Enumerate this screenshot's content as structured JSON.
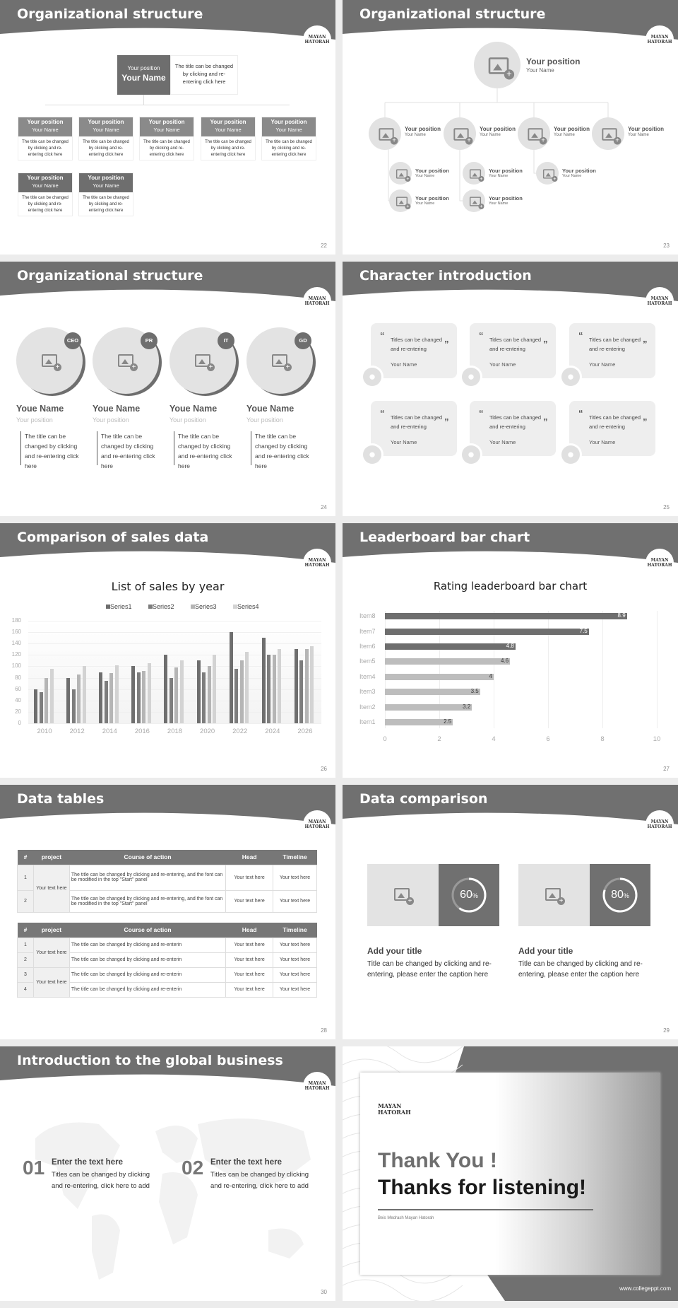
{
  "logo": "MAYAN HATORAH",
  "s22": {
    "number": "22",
    "title": "Organizational structure",
    "top": {
      "position": "Your position",
      "name": "Your Name",
      "desc": "The title can be changed by clicking and re-entering click here"
    },
    "nodes": [
      {
        "position": "Your position",
        "name": "Your Name",
        "desc": "The title can be changed by clicking and re-entering click here"
      },
      {
        "position": "Your position",
        "name": "Your Name",
        "desc": "The title can be changed by clicking and re-entering click here"
      },
      {
        "position": "Your position",
        "name": "Your Name",
        "desc": "The title can be changed by clicking and re-entering click here"
      },
      {
        "position": "Your position",
        "name": "Your Name",
        "desc": "The title can be changed by clicking and re-entering click here"
      },
      {
        "position": "Your position",
        "name": "Your Name",
        "desc": "The title can be changed by clicking and re-entering click here"
      },
      {
        "position": "Your position",
        "name": "Your Name",
        "desc": "The title can be changed by clicking and re-entering click here"
      },
      {
        "position": "Your position",
        "name": "Your Name",
        "desc": "The title can be changed by clicking and re-entering click here"
      }
    ]
  },
  "s23": {
    "number": "23",
    "title": "Organizational structure",
    "top": {
      "position": "Your position",
      "name": "Your Name"
    },
    "level2": [
      {
        "position": "Your position",
        "name": "Your Name"
      },
      {
        "position": "Your position",
        "name": "Your Name"
      },
      {
        "position": "Your position",
        "name": "Your Name"
      },
      {
        "position": "Your position",
        "name": "Your Name"
      }
    ],
    "level3": [
      {
        "position": "Your position",
        "name": "Your Name"
      },
      {
        "position": "Your position",
        "name": "Your Name"
      },
      {
        "position": "Your position",
        "name": "Your Name"
      },
      {
        "position": "Your position",
        "name": "Your Name"
      },
      {
        "position": "Your position",
        "name": "Your Name"
      }
    ]
  },
  "s24": {
    "number": "24",
    "title": "Organizational structure",
    "people": [
      {
        "badge": "CEO",
        "name": "Youe Name",
        "position": "Your position",
        "desc": "The title can be changed by clicking and re-entering click here"
      },
      {
        "badge": "PR",
        "name": "Youe Name",
        "position": "Your position",
        "desc": "The title can be changed by clicking and re-entering click here"
      },
      {
        "badge": "IT",
        "name": "Youe Name",
        "position": "Your position",
        "desc": "The title can be changed by clicking and re-entering click here"
      },
      {
        "badge": "GD",
        "name": "Youe Name",
        "position": "Your position",
        "desc": "The title can be changed by clicking and re-entering click here"
      }
    ]
  },
  "s25": {
    "number": "25",
    "title": "Character introduction",
    "cards": [
      {
        "quote": "Titles can be changed and re-entering",
        "name": "Your Name"
      },
      {
        "quote": "Titles can be changed and re-entering",
        "name": "Your Name"
      },
      {
        "quote": "Titles can be changed and re-entering",
        "name": "Your Name"
      },
      {
        "quote": "Titles can be changed and re-entering",
        "name": "Your Name"
      },
      {
        "quote": "Titles can be changed and re-entering",
        "name": "Your Name"
      },
      {
        "quote": "Titles can be changed and re-entering",
        "name": "Your Name"
      }
    ]
  },
  "s26": {
    "number": "26",
    "title": "Comparison of sales data"
  },
  "s27": {
    "number": "27",
    "title": "Leaderboard bar chart"
  },
  "s28": {
    "number": "28",
    "title": "Data tables",
    "headers": [
      "#",
      "project",
      "Course of action",
      "Head",
      "Timeline"
    ],
    "table1": {
      "project": "Your text here",
      "rows": [
        {
          "n": "1",
          "action": "The title can be changed by clicking and re-entering, and the font can be modified in the top \"Start\" panel",
          "head": "Your text here",
          "timeline": "Your text here"
        },
        {
          "n": "2",
          "action": "The title can be changed by clicking and re-entering, and the font can be modified in the top \"Start\" panel",
          "head": "Your text here",
          "timeline": "Your text here"
        }
      ]
    },
    "table2": {
      "projects": [
        "Your text here",
        "Your text here"
      ],
      "rows": [
        {
          "n": "1",
          "action": "The title can be changed by clicking and re-enterin",
          "head": "Your text here",
          "timeline": "Your text here"
        },
        {
          "n": "2",
          "action": "The title can be changed by clicking and re-enterin",
          "head": "Your text here",
          "timeline": "Your text here"
        },
        {
          "n": "3",
          "action": "The title can be changed by clicking and re-enterin",
          "head": "Your text here",
          "timeline": "Your text here"
        },
        {
          "n": "4",
          "action": "The title can be changed by clicking and re-enterin",
          "head": "Your text here",
          "timeline": "Your text here"
        }
      ]
    }
  },
  "s29": {
    "number": "29",
    "title": "Data comparison",
    "items": [
      {
        "percent": 60,
        "value": "60",
        "unit": "%",
        "title": "Add your title",
        "caption": "Title can be changed by clicking and re-entering, please enter the caption here"
      },
      {
        "percent": 80,
        "value": "80",
        "unit": "%",
        "title": "Add your title",
        "caption": "Title can be changed by clicking and re-entering, please enter the caption here"
      }
    ]
  },
  "s30": {
    "number": "30",
    "title": "Introduction to the global business",
    "items": [
      {
        "num": "01",
        "heading": "Enter the text here",
        "text": "Titles can be changed by clicking and re-entering, click here to add"
      },
      {
        "num": "02",
        "heading": "Enter the text here",
        "text": "Titles can be changed by clicking and re-entering, click here to add"
      }
    ]
  },
  "s31": {
    "logo": "MAYAN HATORAH",
    "thank": "Thank You !",
    "thanks": "Thanks for listening!",
    "subtitle": "Beis Medrash Mayan Hatorah",
    "url": "www.collegeppt.com"
  },
  "colors": {
    "header": "#707070",
    "dark": "#6e6e6e",
    "mid": "#8a8a8a",
    "light": "#bdbdbd",
    "lighter": "#d6d6d6"
  },
  "chart_data": [
    {
      "type": "bar",
      "title": "List of sales by year",
      "categories": [
        "2010",
        "2012",
        "2014",
        "2016",
        "2018",
        "2020",
        "2022",
        "2024",
        "2026"
      ],
      "series": [
        {
          "name": "Series1",
          "values": [
            60,
            80,
            90,
            100,
            120,
            110,
            160,
            150,
            130
          ],
          "color": "#6e6e6e"
        },
        {
          "name": "Series2",
          "values": [
            55,
            60,
            75,
            90,
            80,
            90,
            96,
            120,
            110
          ],
          "color": "#7d7d7d"
        },
        {
          "name": "Series3",
          "values": [
            80,
            86,
            88,
            92,
            98,
            100,
            110,
            120,
            130
          ],
          "color": "#b5b5b5"
        },
        {
          "name": "Series4",
          "values": [
            95,
            100,
            102,
            105,
            110,
            120,
            126,
            130,
            135
          ],
          "color": "#d3d3d3"
        }
      ],
      "ylim": [
        0,
        180
      ],
      "yticks": [
        "0",
        "20",
        "40",
        "60",
        "80",
        "100",
        "120",
        "140",
        "160",
        "180"
      ],
      "legend": "top",
      "grid": true
    },
    {
      "type": "bar",
      "orientation": "horizontal",
      "title": "Rating leaderboard bar chart",
      "categories": [
        "Item1",
        "Item2",
        "Item3",
        "Item4",
        "Item5",
        "Item6",
        "Item7",
        "Item8"
      ],
      "values": [
        2.5,
        3.2,
        3.5,
        4,
        4.6,
        4.8,
        7.5,
        8.9
      ],
      "labels": [
        "2.5",
        "3.2",
        "3.5",
        "4",
        "4.6",
        "4.8",
        "7.5",
        "8.9"
      ],
      "xlim": [
        0,
        10
      ],
      "xticks": [
        "0",
        "2",
        "4",
        "6",
        "8",
        "10"
      ],
      "grid": true
    }
  ]
}
